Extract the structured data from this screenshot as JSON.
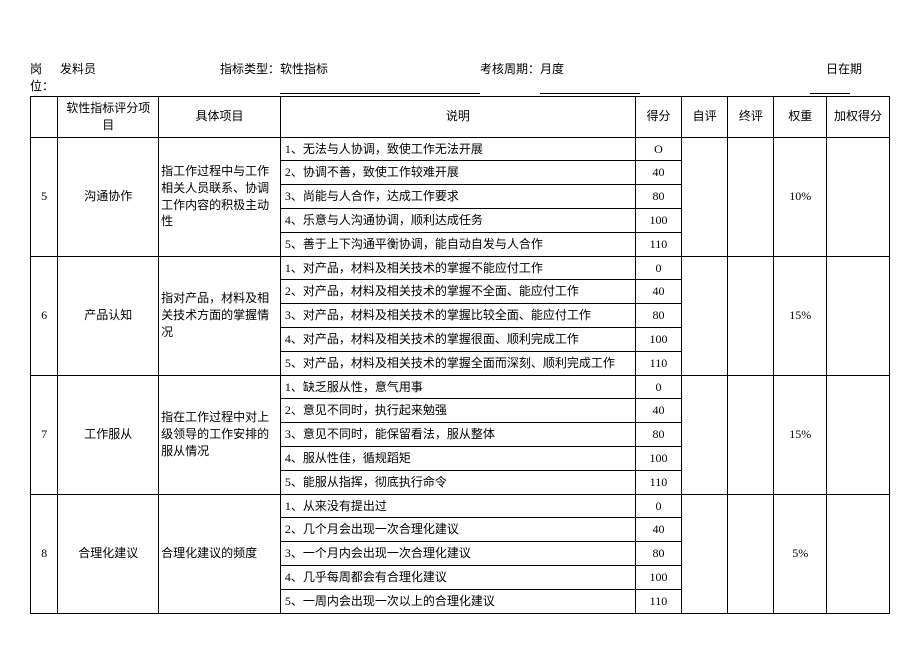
{
  "header": {
    "left_label": "岗位：",
    "position": "发料员",
    "type_label": "指标类型：",
    "type_value": "软性指标",
    "period_label": "考核周期：",
    "period_value": "月度",
    "right_label1": "日在",
    "right_label2": "期"
  },
  "columns": {
    "idx": "",
    "category": "软性指标评分项目",
    "project": "具体项目",
    "desc": "说明",
    "score": "得分",
    "self": "自评",
    "final": "终评",
    "weight": "权重",
    "weighted": "加权得分"
  },
  "groups": [
    {
      "idx": "5",
      "category": "沟通协作",
      "project": "指工作过程中与工作相关人员联系、协调工作内容的积极主动性",
      "weight": "10%",
      "rows": [
        {
          "desc": "1、无法与人协调，致使工作无法开展",
          "score": "O"
        },
        {
          "desc": "2、协调不善，致使工作较难开展",
          "score": "40"
        },
        {
          "desc": "3、尚能与人合作，达成工作要求",
          "score": "80"
        },
        {
          "desc": "4、乐意与人沟通协调，顺利达成任务",
          "score": "100"
        },
        {
          "desc": "5、善于上下沟通平衡协调，能自动自发与人合作",
          "score": "110"
        }
      ]
    },
    {
      "idx": "6",
      "category": "产品认知",
      "project": "指对产品，材料及相关技术方面的掌握情况",
      "weight": "15%",
      "rows": [
        {
          "desc": "1、对产品，材料及相关技术的掌握不能应付工作",
          "score": "0"
        },
        {
          "desc": "2、对产品，材料及相关技术的掌握不全面、能应付工作",
          "score": "40"
        },
        {
          "desc": "3、对产品，材料及相关技术的掌握比较全面、能应付工作",
          "score": "80"
        },
        {
          "desc": "4、对产品，材料及相关技术的掌握很面、顺利完成工作",
          "score": "100"
        },
        {
          "desc": "5、对产品，材料及相关技术的掌握全面而深刻、顺利完成工作",
          "score": "110"
        }
      ]
    },
    {
      "idx": "7",
      "category": "工作服从",
      "project": "指在工作过程中对上级领导的工作安排的服从情况",
      "weight": "15%",
      "rows": [
        {
          "desc": "1、缺乏服从性，意气用事",
          "score": "0"
        },
        {
          "desc": "2、意见不同时，执行起来勉强",
          "score": "40"
        },
        {
          "desc": "3、意见不同时，能保留看法，服从整体",
          "score": "80"
        },
        {
          "desc": "4、服从性佳，循规蹈矩",
          "score": "100"
        },
        {
          "desc": "5、能服从指挥，彻底执行命令",
          "score": "110"
        }
      ]
    },
    {
      "idx": "8",
      "category": "合理化建议",
      "project": "合理化建议的频度",
      "weight": "5%",
      "rows": [
        {
          "desc": "1、从来没有提出过",
          "score": "0"
        },
        {
          "desc": "2、几个月会出现一次合理化建议",
          "score": "40"
        },
        {
          "desc": "3、一个月内会出现一次合理化建议",
          "score": "80"
        },
        {
          "desc": "4、几乎每周都会有合理化建议",
          "score": "100"
        },
        {
          "desc": "5、一周内会出现一次以上的合理化建议",
          "score": "110"
        }
      ]
    }
  ]
}
